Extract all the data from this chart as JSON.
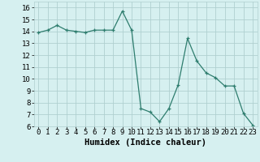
{
  "x": [
    0,
    1,
    2,
    3,
    4,
    5,
    6,
    7,
    8,
    9,
    10,
    11,
    12,
    13,
    14,
    15,
    16,
    17,
    18,
    19,
    20,
    21,
    22,
    23
  ],
  "y": [
    13.9,
    14.1,
    14.5,
    14.1,
    14.0,
    13.9,
    14.1,
    14.1,
    14.1,
    15.7,
    14.1,
    7.5,
    7.2,
    6.4,
    7.5,
    9.5,
    13.4,
    11.5,
    10.5,
    10.1,
    9.4,
    9.4,
    7.1,
    6.1
  ],
  "line_color": "#2e7d6e",
  "marker": "+",
  "marker_size": 3,
  "bg_color": "#d6f0f0",
  "grid_color": "#b0d0d0",
  "xlabel": "Humidex (Indice chaleur)",
  "xlim": [
    -0.5,
    23.5
  ],
  "ylim": [
    6,
    16.5
  ],
  "xticks": [
    0,
    1,
    2,
    3,
    4,
    5,
    6,
    7,
    8,
    9,
    10,
    11,
    12,
    13,
    14,
    15,
    16,
    17,
    18,
    19,
    20,
    21,
    22,
    23
  ],
  "yticks": [
    6,
    7,
    8,
    9,
    10,
    11,
    12,
    13,
    14,
    15,
    16
  ],
  "xlabel_fontsize": 7.5,
  "tick_fontsize": 6.5
}
